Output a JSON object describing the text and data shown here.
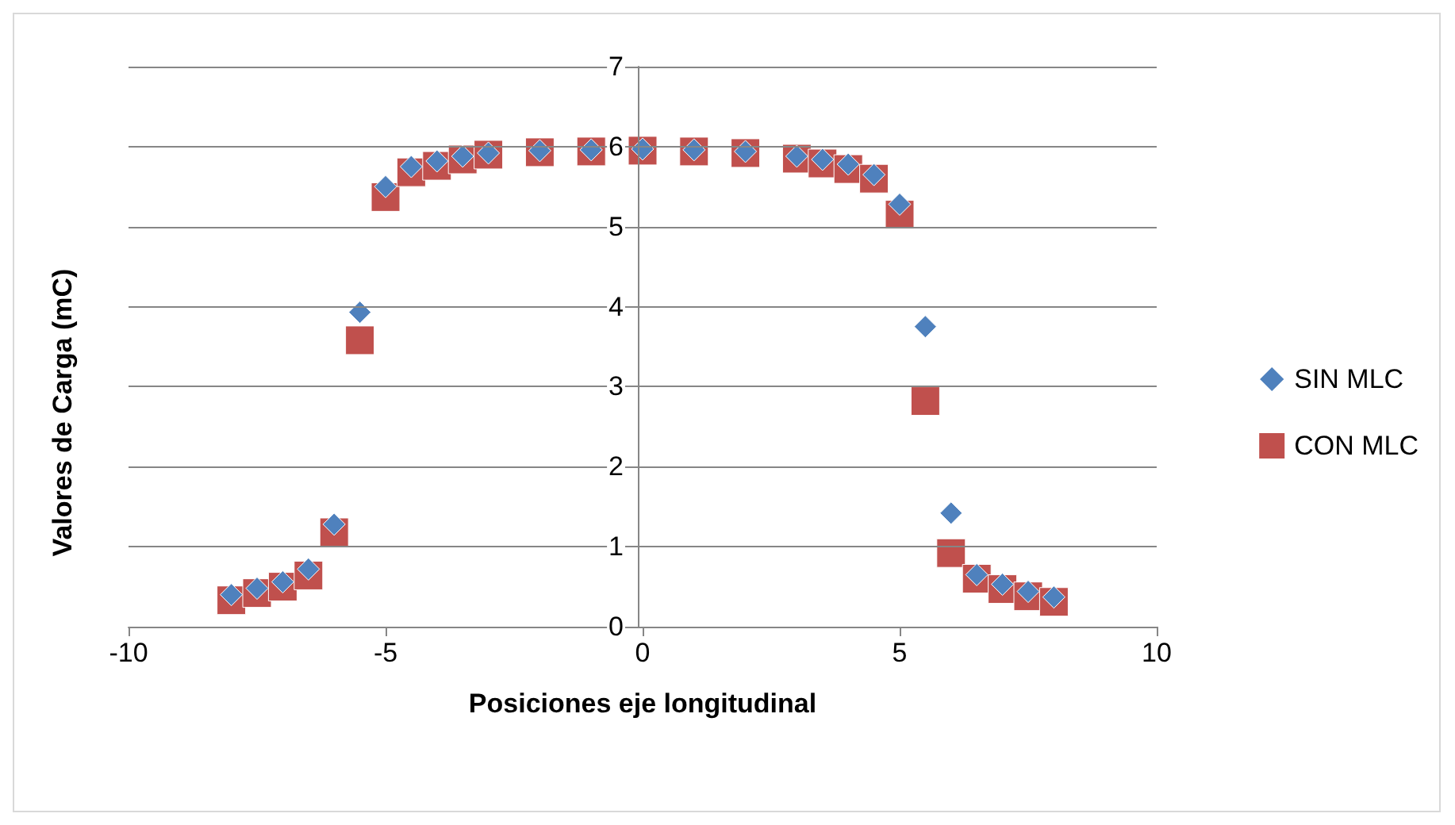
{
  "chart_data": {
    "type": "scatter",
    "xlabel": "Posiciones eje longitudinal",
    "ylabel": "Valores de Carga (mC)",
    "x": [
      -8,
      -7.5,
      -7,
      -6.5,
      -6,
      -5.5,
      -5,
      -4.5,
      -4,
      -3.5,
      -3,
      -2,
      -1,
      0,
      1,
      2,
      3,
      3.5,
      4,
      4.5,
      5,
      5.5,
      6,
      6.5,
      7,
      7.5,
      8
    ],
    "series": [
      {
        "name": "SIN MLC",
        "color": "#4f81bd",
        "marker": "diamond",
        "values": [
          0.4,
          0.48,
          0.56,
          0.72,
          1.28,
          3.93,
          5.5,
          5.75,
          5.82,
          5.88,
          5.92,
          5.95,
          5.96,
          5.97,
          5.96,
          5.94,
          5.88,
          5.84,
          5.78,
          5.65,
          5.28,
          3.75,
          1.42,
          0.65,
          0.53,
          0.44,
          0.37
        ]
      },
      {
        "name": "CON MLC",
        "color": "#c0504d",
        "marker": "square",
        "values": [
          0.33,
          0.42,
          0.5,
          0.64,
          1.18,
          3.58,
          5.37,
          5.68,
          5.76,
          5.84,
          5.9,
          5.93,
          5.94,
          5.95,
          5.94,
          5.92,
          5.85,
          5.79,
          5.72,
          5.6,
          5.15,
          2.82,
          0.92,
          0.6,
          0.47,
          0.38,
          0.31
        ]
      }
    ],
    "xlim": [
      -10,
      10
    ],
    "xticks": [
      -10,
      -5,
      0,
      5,
      10
    ],
    "ylim": [
      0,
      7
    ],
    "yticks": [
      0,
      1,
      2,
      3,
      4,
      5,
      6,
      7
    ],
    "grid": "y",
    "legend": "right"
  }
}
